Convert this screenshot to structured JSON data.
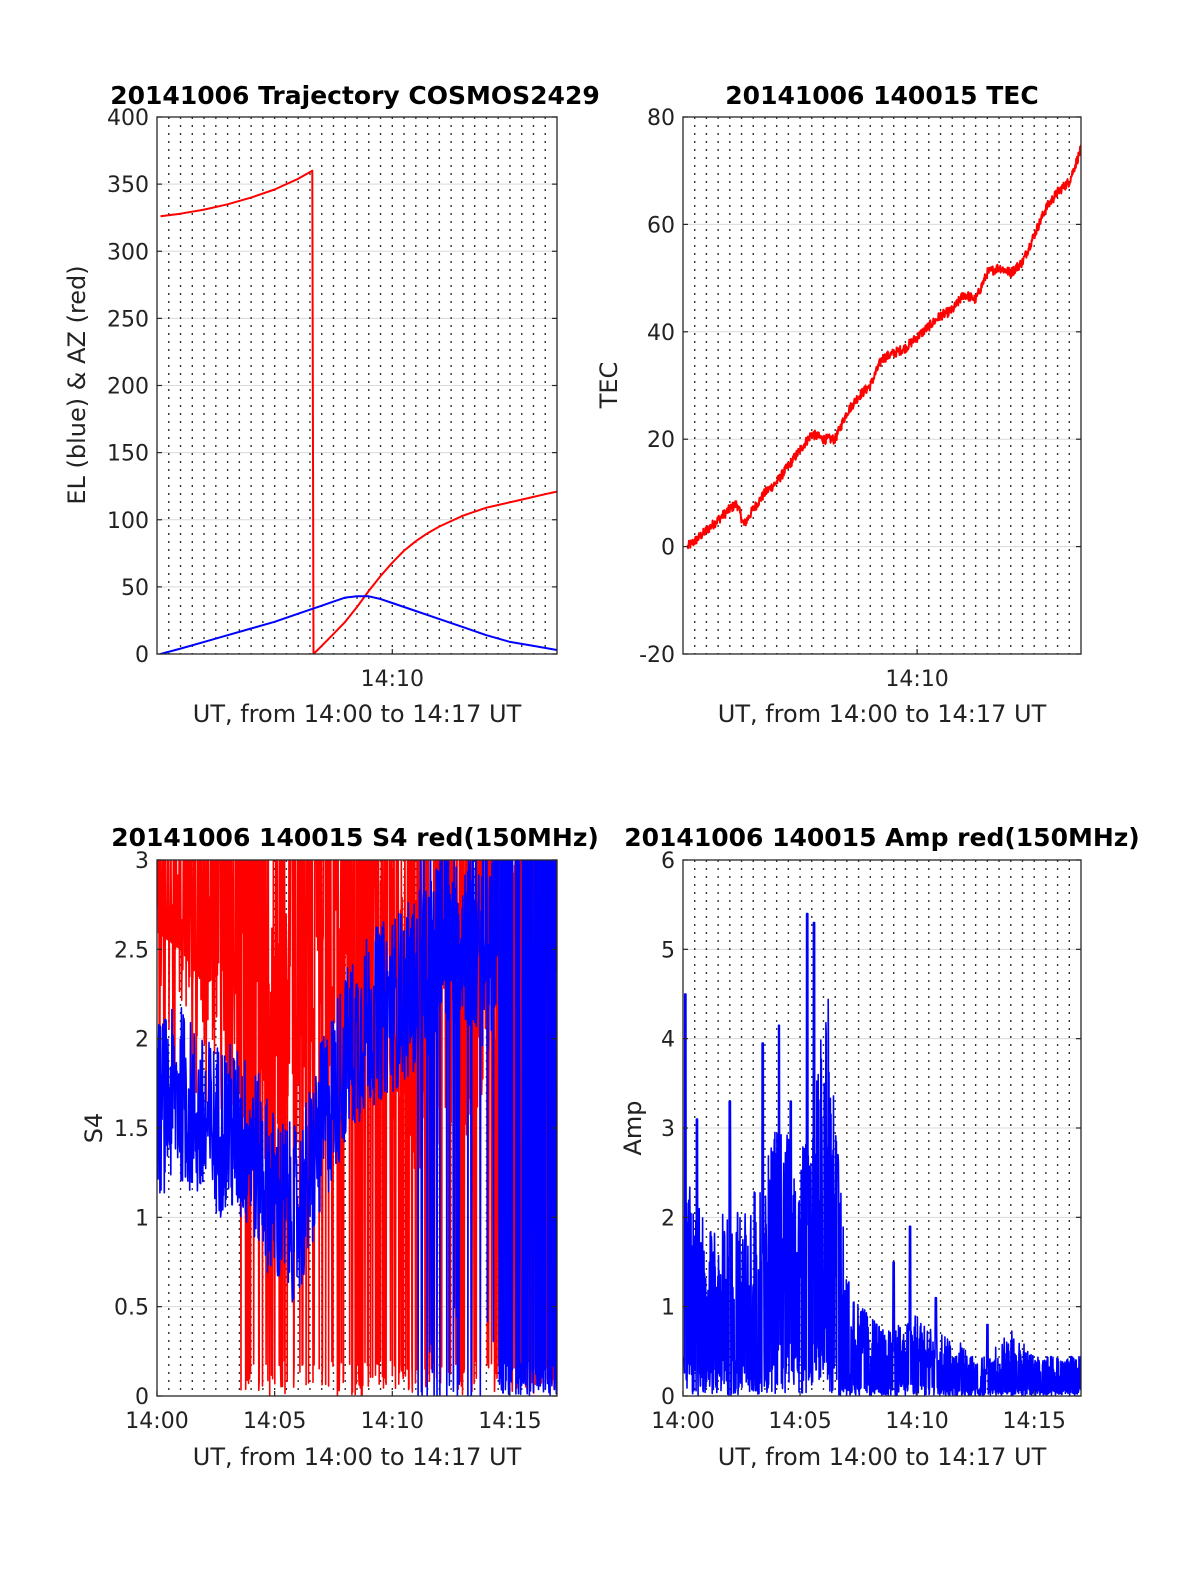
{
  "chart_data": [
    {
      "type": "line",
      "title": "20141006 Trajectory COSMOS2429",
      "xlabel": "UT, from 14:00 to 14:17 UT",
      "ylabel": "EL (blue) & AZ (red)",
      "xlim": [
        0,
        17
      ],
      "ylim": [
        0,
        400
      ],
      "yticks": [
        0,
        50,
        100,
        150,
        200,
        250,
        300,
        350,
        400
      ],
      "xticks": [
        {
          "value": 10,
          "label": "14:10"
        }
      ],
      "grid": "dotted vertical every 0.5 min, solid horizontal at y ticks",
      "series": [
        {
          "color": "#ff0000",
          "x": [
            0.15,
            1.0,
            2.0,
            3.0,
            4.0,
            5.0,
            5.5,
            6.0,
            6.6,
            6.65,
            7.0,
            7.5,
            8.0,
            8.5,
            9.0,
            9.5,
            10.0,
            10.5,
            11.0,
            11.5,
            12.0,
            12.5,
            13.0,
            13.5,
            14.0,
            14.5,
            15.0,
            15.5,
            16.0,
            16.5,
            17.0
          ],
          "values": [
            326,
            328,
            331,
            335,
            340,
            346,
            350,
            354,
            360,
            0,
            6,
            15,
            24,
            35,
            47,
            58,
            68,
            77,
            84,
            90,
            95,
            99,
            103,
            106,
            109,
            111,
            113,
            115,
            117,
            119,
            121
          ]
        },
        {
          "color": "#0000ff",
          "x": [
            0.15,
            1.0,
            2.0,
            3.0,
            4.0,
            5.0,
            6.0,
            7.0,
            7.5,
            8.0,
            8.5,
            9.0,
            9.5,
            10.0,
            11.0,
            12.0,
            13.0,
            14.0,
            15.0,
            16.0,
            17.0
          ],
          "values": [
            0,
            4,
            9,
            14,
            19,
            24,
            30,
            36,
            39,
            42,
            43,
            43,
            41,
            38,
            32,
            26,
            20,
            14,
            9,
            6,
            3
          ]
        }
      ]
    },
    {
      "type": "line",
      "title": "20141006 140015 TEC",
      "xlabel": "UT, from 14:00 to 14:17 UT",
      "ylabel": "TEC",
      "xlim": [
        0,
        17
      ],
      "ylim": [
        -20,
        80
      ],
      "yticks": [
        -20,
        0,
        20,
        40,
        60,
        80
      ],
      "xticks": [
        {
          "value": 10,
          "label": "14:10"
        }
      ],
      "series": [
        {
          "color": "#ff0000",
          "noisy": true,
          "x": [
            0.2,
            0.5,
            1.0,
            1.5,
            2.0,
            2.3,
            2.6,
            3.0,
            3.5,
            4.0,
            4.5,
            5.0,
            5.5,
            6.0,
            6.5,
            7.0,
            7.5,
            8.0,
            8.5,
            9.0,
            9.5,
            10.0,
            10.5,
            11.0,
            11.5,
            12.0,
            12.5,
            13.0,
            13.5,
            14.0,
            14.5,
            15.0,
            15.5,
            16.0,
            16.5,
            17.0
          ],
          "values": [
            0,
            1,
            3,
            5,
            7,
            8,
            4,
            7,
            10,
            12,
            15,
            18,
            21,
            20,
            20,
            25,
            28,
            30,
            35,
            36,
            37,
            39,
            41,
            43,
            44,
            47,
            46,
            51,
            52,
            51,
            53,
            58,
            63,
            66,
            68,
            74
          ]
        }
      ]
    },
    {
      "type": "line",
      "title": "20141006 140015 S4 red(150MHz)",
      "xlabel": "UT, from 14:00 to 14:17 UT",
      "ylabel": "S4",
      "xlim": [
        0,
        17
      ],
      "ylim": [
        0,
        3
      ],
      "yticks": [
        0,
        0.5,
        1,
        1.5,
        2,
        2.5,
        3
      ],
      "xticks": [
        {
          "value": 0,
          "label": "14:00"
        },
        {
          "value": 5,
          "label": "14:05"
        },
        {
          "value": 10,
          "label": "14:10"
        },
        {
          "value": 15,
          "label": "14:15"
        }
      ],
      "series": [
        {
          "color": "#ff0000",
          "noisy": true,
          "x": [
            0,
            1,
            2,
            3,
            4,
            5,
            6,
            7,
            8,
            9,
            10,
            11,
            12,
            13,
            14,
            15,
            16,
            17
          ],
          "values": [
            2.6,
            2.5,
            2.3,
            2.4,
            2.0,
            2.0,
            2.1,
            2.3,
            2.4,
            2.6,
            2.3,
            2.0,
            2.2,
            2.1,
            2.5,
            2.8,
            3.0,
            3.0
          ]
        },
        {
          "color": "#0000ff",
          "noisy": true,
          "x": [
            0,
            1,
            2,
            3,
            4,
            5,
            6,
            7,
            8,
            9,
            10,
            11,
            12,
            13,
            14,
            15,
            16,
            17
          ],
          "values": [
            1.6,
            1.7,
            1.5,
            1.5,
            1.4,
            1.1,
            1.0,
            1.5,
            1.9,
            2.1,
            2.2,
            2.3,
            2.5,
            2.6,
            2.4,
            2.8,
            3.0,
            3.0
          ]
        }
      ]
    },
    {
      "type": "line",
      "title": "20141006 140015 Amp red(150MHz)",
      "xlabel": "UT, from 14:00 to 14:17 UT",
      "ylabel": "Amp",
      "xlim": [
        0,
        17
      ],
      "ylim": [
        0,
        6
      ],
      "yticks": [
        0,
        1,
        2,
        3,
        4,
        5,
        6
      ],
      "xticks": [
        {
          "value": 0,
          "label": "14:00"
        },
        {
          "value": 5,
          "label": "14:05"
        },
        {
          "value": 10,
          "label": "14:10"
        },
        {
          "value": 15,
          "label": "14:15"
        }
      ],
      "series": [
        {
          "color": "#0000ff",
          "noisy": true,
          "x": [
            0,
            0.5,
            1,
            1.5,
            2,
            2.5,
            3,
            3.5,
            4,
            4.5,
            5,
            5.5,
            6,
            6.5,
            7,
            7.5,
            8,
            8.5,
            9,
            9.5,
            10,
            10.5,
            11,
            11.5,
            12,
            12.5,
            13,
            13.5,
            14,
            14.5,
            15,
            15.5,
            16,
            16.5,
            17
          ],
          "values": [
            1.5,
            1.6,
            1.2,
            1.3,
            1.5,
            1.4,
            1.5,
            1.8,
            2.0,
            2.0,
            2.0,
            1.8,
            3.5,
            2.2,
            0.9,
            0.7,
            0.6,
            0.5,
            0.5,
            0.6,
            0.6,
            0.5,
            0.5,
            0.4,
            0.4,
            0.3,
            0.3,
            0.4,
            0.5,
            0.4,
            0.3,
            0.3,
            0.3,
            0.3,
            0.3
          ],
          "peaks": [
            [
              0.1,
              4.5
            ],
            [
              0.6,
              3.1
            ],
            [
              2.0,
              3.3
            ],
            [
              3.4,
              3.95
            ],
            [
              4.1,
              4.15
            ],
            [
              4.6,
              3.3
            ],
            [
              5.3,
              5.4
            ],
            [
              5.6,
              5.3
            ],
            [
              6.6,
              2.7
            ],
            [
              9.0,
              1.5
            ],
            [
              9.7,
              1.9
            ],
            [
              10.8,
              1.1
            ],
            [
              13.0,
              0.8
            ]
          ]
        }
      ]
    }
  ]
}
